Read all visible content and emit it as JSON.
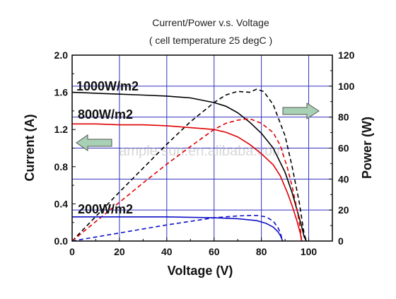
{
  "chart_data": {
    "type": "line",
    "title": "Current/Power v.s. Voltage",
    "subtitle": "( cell temperature 25 degC )",
    "xlabel": "Voltage (V)",
    "ylabel_left": "Current (A)",
    "ylabel_right": "Power (W)",
    "xlim": [
      0,
      110
    ],
    "ylim_left": [
      0,
      2.0
    ],
    "ylim_right": [
      0,
      120
    ],
    "x_ticks": [
      "0",
      "20",
      "40",
      "60",
      "80",
      "100"
    ],
    "y_left_ticks": [
      "0.0",
      "0.4",
      "0.8",
      "1.2",
      "1.6",
      "2.0"
    ],
    "y_right_ticks": [
      "0",
      "20",
      "40",
      "60",
      "80",
      "100",
      "120"
    ],
    "grid": true,
    "watermark": "ample sun.en.alibaba.com",
    "series": [
      {
        "name": "1000W/m2",
        "color": "#000000",
        "current": [
          [
            0,
            1.6
          ],
          [
            10,
            1.59
          ],
          [
            20,
            1.58
          ],
          [
            30,
            1.57
          ],
          [
            40,
            1.56
          ],
          [
            50,
            1.54
          ],
          [
            60,
            1.49
          ],
          [
            65,
            1.45
          ],
          [
            70,
            1.38
          ],
          [
            75,
            1.28
          ],
          [
            80,
            1.16
          ],
          [
            85,
            1.0
          ],
          [
            90,
            0.74
          ],
          [
            93,
            0.52
          ],
          [
            95,
            0.34
          ],
          [
            97,
            0.16
          ],
          [
            98,
            0.05
          ],
          [
            99,
            0.0
          ]
        ],
        "power": [
          [
            0,
            0
          ],
          [
            10,
            15.9
          ],
          [
            20,
            31.6
          ],
          [
            30,
            47.1
          ],
          [
            40,
            62.4
          ],
          [
            50,
            77.0
          ],
          [
            60,
            89.4
          ],
          [
            65,
            94.3
          ],
          [
            70,
            96.6
          ],
          [
            75,
            96.0
          ],
          [
            78,
            98.0
          ],
          [
            81,
            96.5
          ],
          [
            85,
            88.0
          ],
          [
            90,
            68.0
          ],
          [
            93,
            48.0
          ],
          [
            96,
            25.0
          ],
          [
            98,
            5.0
          ],
          [
            99,
            0
          ]
        ]
      },
      {
        "name": "800W/m2",
        "color": "#e00000",
        "current": [
          [
            0,
            1.26
          ],
          [
            10,
            1.26
          ],
          [
            20,
            1.25
          ],
          [
            30,
            1.25
          ],
          [
            40,
            1.24
          ],
          [
            50,
            1.22
          ],
          [
            60,
            1.2
          ],
          [
            65,
            1.17
          ],
          [
            70,
            1.12
          ],
          [
            75,
            1.04
          ],
          [
            80,
            0.94
          ],
          [
            85,
            0.82
          ],
          [
            88,
            0.7
          ],
          [
            91,
            0.52
          ],
          [
            93,
            0.38
          ],
          [
            95,
            0.22
          ],
          [
            96.5,
            0.08
          ],
          [
            97,
            0.0
          ]
        ],
        "power": [
          [
            0,
            0
          ],
          [
            10,
            12.6
          ],
          [
            20,
            25.0
          ],
          [
            30,
            37.5
          ],
          [
            40,
            49.6
          ],
          [
            50,
            61.0
          ],
          [
            60,
            72.0
          ],
          [
            65,
            76.0
          ],
          [
            70,
            78.0
          ],
          [
            75,
            79.0
          ],
          [
            80,
            76.0
          ],
          [
            85,
            70.0
          ],
          [
            88,
            61.6
          ],
          [
            91,
            47.3
          ],
          [
            93,
            35.3
          ],
          [
            95,
            21.0
          ],
          [
            96.5,
            7.7
          ],
          [
            97,
            0
          ]
        ]
      },
      {
        "name": "200W/m2",
        "color": "#1010c8",
        "current": [
          [
            0,
            0.26
          ],
          [
            20,
            0.26
          ],
          [
            40,
            0.26
          ],
          [
            60,
            0.25
          ],
          [
            70,
            0.24
          ],
          [
            78,
            0.22
          ],
          [
            82,
            0.19
          ],
          [
            85,
            0.15
          ],
          [
            87,
            0.1
          ],
          [
            88,
            0.06
          ],
          [
            89,
            0.0
          ]
        ],
        "power": [
          [
            0,
            0
          ],
          [
            20,
            5.2
          ],
          [
            40,
            10.4
          ],
          [
            60,
            15.0
          ],
          [
            70,
            16.2
          ],
          [
            75,
            16.5
          ],
          [
            78,
            16.5
          ],
          [
            82,
            15.6
          ],
          [
            85,
            12.8
          ],
          [
            87,
            8.7
          ],
          [
            88,
            5.3
          ],
          [
            89,
            0
          ]
        ]
      }
    ],
    "annotations": {
      "left_arrow_color": "#a8d0b4",
      "right_arrow_color": "#a8d0b4"
    }
  }
}
